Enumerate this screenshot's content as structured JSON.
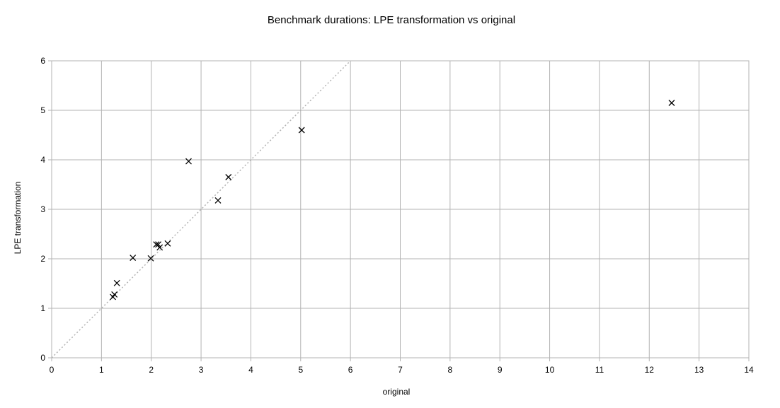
{
  "chart_data": {
    "type": "scatter",
    "title": "Benchmark durations: LPE transformation vs original",
    "xlabel": "original",
    "ylabel": "LPE transformation",
    "xlim": [
      0,
      14
    ],
    "ylim": [
      0,
      6
    ],
    "xticks": [
      0,
      1,
      2,
      3,
      4,
      5,
      6,
      7,
      8,
      9,
      10,
      11,
      12,
      13,
      14
    ],
    "yticks": [
      0,
      1,
      2,
      3,
      4,
      5,
      6
    ],
    "grid": true,
    "marker": "x",
    "reference_line": {
      "style": "dotted",
      "from": [
        0,
        0
      ],
      "to": [
        6,
        6
      ]
    },
    "points": [
      {
        "x": 12.45,
        "y": 5.15
      },
      {
        "x": 5.02,
        "y": 4.6
      },
      {
        "x": 2.75,
        "y": 3.97
      },
      {
        "x": 3.55,
        "y": 3.65
      },
      {
        "x": 3.34,
        "y": 3.18
      },
      {
        "x": 2.33,
        "y": 2.31
      },
      {
        "x": 2.1,
        "y": 2.29
      },
      {
        "x": 2.14,
        "y": 2.29
      },
      {
        "x": 2.17,
        "y": 2.23
      },
      {
        "x": 1.63,
        "y": 2.02
      },
      {
        "x": 1.99,
        "y": 2.01
      },
      {
        "x": 1.31,
        "y": 1.51
      },
      {
        "x": 1.26,
        "y": 1.28
      },
      {
        "x": 1.23,
        "y": 1.23
      }
    ]
  },
  "colors": {
    "grid": "#b3b3b3",
    "axis": "#b3b3b3",
    "marker": "#000000",
    "reference_line": "#b3b3b3"
  }
}
